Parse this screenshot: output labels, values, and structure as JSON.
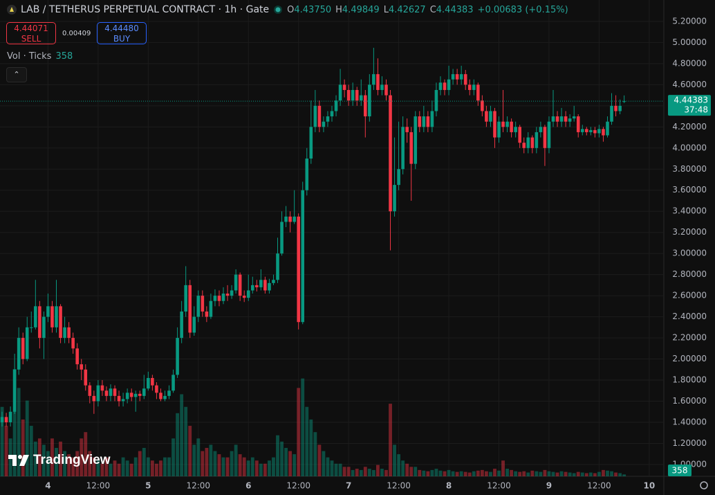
{
  "header": {
    "symbol": "LAB / TETHERUS PERPETUAL CONTRACT · 1h · Gate",
    "ohlc_letters": [
      "O",
      "H",
      "L",
      "C"
    ],
    "open_label": "4.43750",
    "change": "+0.00683 (+0.15%)",
    "sell_price": "4.44071",
    "sell": "SELL",
    "spread": "0.00409",
    "buy_price": "4.44480",
    "buy": "BUY",
    "volume_legend": "Vol · Ticks",
    "countdown": "37:48",
    "brand": "TradingView"
  },
  "chart_data": {
    "type": "candlestick",
    "open": [
      1.4,
      1.45,
      1.4,
      1.5,
      1.9,
      2.2,
      2.0,
      2.3,
      2.3,
      2.5,
      2.2,
      2.4,
      2.5,
      2.3,
      2.5,
      2.2,
      2.3,
      2.2,
      2.1,
      1.95,
      1.9,
      1.75,
      1.65,
      1.6,
      1.75,
      1.7,
      1.65,
      1.72,
      1.65,
      1.6,
      1.62,
      1.68,
      1.64,
      1.67,
      1.65,
      1.72,
      1.82,
      1.75,
      1.68,
      1.62,
      1.65,
      1.7,
      1.85,
      2.2,
      2.45,
      2.7,
      2.25,
      2.4,
      2.6,
      2.45,
      2.4,
      2.55,
      2.6,
      2.55,
      2.62,
      2.6,
      2.65,
      2.8,
      2.6,
      2.58,
      2.65,
      2.7,
      2.68,
      2.75,
      2.65,
      2.72,
      2.75,
      3.0,
      3.3,
      3.35,
      3.3,
      3.35,
      2.35,
      3.6,
      3.9,
      4.2,
      4.4,
      4.2,
      4.25,
      4.3,
      4.35,
      4.45,
      4.6,
      4.55,
      4.45,
      4.55,
      4.45,
      4.5,
      4.3,
      4.6,
      4.7,
      4.55,
      4.6,
      4.5,
      3.4,
      3.65,
      3.8,
      4.2,
      4.15,
      3.85,
      4.3,
      4.2,
      4.3,
      4.2,
      4.35,
      4.55,
      4.62,
      4.55,
      4.65,
      4.7,
      4.65,
      4.7,
      4.6,
      4.55,
      4.6,
      4.45,
      4.35,
      4.25,
      4.35,
      4.1,
      4.25,
      4.2,
      4.25,
      4.15,
      4.2,
      4.05,
      4.0,
      4.1,
      4.0,
      4.15,
      4.2,
      4.0,
      4.25,
      4.3,
      4.25,
      4.3,
      4.25,
      4.28,
      4.3,
      4.15,
      4.18,
      4.15,
      4.17,
      4.14,
      4.18,
      4.12,
      4.25,
      4.4,
      4.35,
      4.4375
    ],
    "high": [
      1.5,
      1.49,
      1.55,
      2.05,
      2.3,
      2.25,
      2.4,
      2.45,
      2.75,
      2.55,
      2.45,
      2.62,
      2.55,
      2.75,
      2.52,
      2.4,
      2.35,
      2.25,
      2.15,
      2.0,
      1.95,
      1.78,
      1.7,
      1.8,
      1.8,
      1.74,
      1.76,
      1.75,
      1.7,
      1.68,
      1.72,
      1.72,
      1.7,
      1.7,
      1.85,
      1.88,
      1.85,
      1.78,
      1.72,
      1.7,
      1.75,
      1.9,
      2.3,
      2.55,
      2.88,
      2.75,
      2.5,
      2.65,
      2.65,
      2.5,
      2.62,
      2.66,
      2.65,
      2.68,
      2.7,
      2.7,
      2.85,
      2.82,
      2.65,
      2.8,
      2.78,
      2.75,
      2.85,
      2.78,
      2.76,
      2.8,
      3.15,
      3.4,
      3.45,
      3.4,
      3.6,
      3.38,
      3.68,
      4.0,
      4.45,
      4.55,
      4.45,
      4.3,
      4.35,
      4.4,
      4.5,
      4.75,
      4.65,
      4.6,
      4.62,
      4.58,
      4.65,
      4.55,
      4.7,
      4.95,
      4.85,
      4.68,
      4.65,
      4.55,
      4.1,
      4.25,
      4.3,
      4.28,
      4.2,
      4.35,
      4.35,
      4.4,
      4.35,
      4.45,
      4.62,
      4.68,
      4.65,
      4.78,
      4.75,
      4.75,
      4.78,
      4.74,
      4.65,
      4.65,
      4.62,
      4.5,
      4.4,
      4.4,
      4.38,
      4.3,
      4.55,
      4.3,
      4.28,
      4.25,
      4.22,
      4.1,
      4.15,
      4.12,
      4.2,
      4.25,
      4.22,
      4.3,
      4.55,
      4.35,
      4.38,
      4.35,
      4.32,
      4.4,
      4.32,
      4.22,
      4.2,
      4.2,
      4.2,
      4.22,
      4.2,
      4.3,
      4.52,
      4.5,
      4.46,
      4.49849
    ],
    "low": [
      1.36,
      1.36,
      1.36,
      1.48,
      1.85,
      1.95,
      1.98,
      2.25,
      2.28,
      2.1,
      2.0,
      2.35,
      2.25,
      2.25,
      2.15,
      2.15,
      2.15,
      2.05,
      1.9,
      1.8,
      1.7,
      1.58,
      1.48,
      1.55,
      1.65,
      1.6,
      1.6,
      1.6,
      1.55,
      1.55,
      1.58,
      1.6,
      1.5,
      1.6,
      1.62,
      1.7,
      1.7,
      1.62,
      1.6,
      1.6,
      1.62,
      1.68,
      1.82,
      2.15,
      2.4,
      2.2,
      2.22,
      2.35,
      2.4,
      2.35,
      2.38,
      2.5,
      2.5,
      2.52,
      2.55,
      2.57,
      2.62,
      2.55,
      2.54,
      2.55,
      2.62,
      2.64,
      2.65,
      2.62,
      2.62,
      2.7,
      2.72,
      2.98,
      3.25,
      3.2,
      3.28,
      2.28,
      2.33,
      3.55,
      3.85,
      4.15,
      4.15,
      4.15,
      4.2,
      4.25,
      4.3,
      4.4,
      4.48,
      4.4,
      4.4,
      4.4,
      4.4,
      4.1,
      4.25,
      4.55,
      4.5,
      4.5,
      4.45,
      3.03,
      3.35,
      3.6,
      3.75,
      4.05,
      3.5,
      3.8,
      4.15,
      4.15,
      4.15,
      4.15,
      4.3,
      4.5,
      4.5,
      4.5,
      4.6,
      4.6,
      4.6,
      4.55,
      4.5,
      4.5,
      4.4,
      4.3,
      4.2,
      4.2,
      4.0,
      4.05,
      4.15,
      4.15,
      4.1,
      4.1,
      4.0,
      3.95,
      3.95,
      3.95,
      3.95,
      4.1,
      3.83,
      3.95,
      4.2,
      4.2,
      4.2,
      4.2,
      4.2,
      4.25,
      4.1,
      4.12,
      4.12,
      4.12,
      4.1,
      4.1,
      4.06,
      4.1,
      4.22,
      4.3,
      4.32,
      4.42627
    ],
    "close": [
      1.45,
      1.4,
      1.5,
      1.9,
      2.2,
      2.0,
      2.3,
      2.3,
      2.5,
      2.2,
      2.4,
      2.5,
      2.3,
      2.5,
      2.2,
      2.3,
      2.2,
      2.1,
      1.95,
      1.9,
      1.75,
      1.65,
      1.6,
      1.75,
      1.7,
      1.65,
      1.72,
      1.65,
      1.6,
      1.62,
      1.68,
      1.64,
      1.67,
      1.65,
      1.72,
      1.82,
      1.75,
      1.68,
      1.62,
      1.65,
      1.7,
      1.85,
      2.2,
      2.45,
      2.7,
      2.25,
      2.4,
      2.6,
      2.45,
      2.4,
      2.55,
      2.6,
      2.55,
      2.62,
      2.6,
      2.65,
      2.8,
      2.6,
      2.58,
      2.65,
      2.7,
      2.68,
      2.75,
      2.65,
      2.72,
      2.75,
      3.0,
      3.3,
      3.35,
      3.3,
      3.35,
      2.35,
      3.6,
      3.9,
      4.2,
      4.4,
      4.2,
      4.25,
      4.3,
      4.35,
      4.45,
      4.6,
      4.55,
      4.45,
      4.55,
      4.45,
      4.5,
      4.3,
      4.6,
      4.7,
      4.55,
      4.6,
      4.5,
      3.4,
      3.65,
      3.8,
      4.2,
      4.15,
      3.85,
      4.3,
      4.2,
      4.3,
      4.2,
      4.35,
      4.55,
      4.62,
      4.55,
      4.65,
      4.7,
      4.65,
      4.7,
      4.6,
      4.55,
      4.6,
      4.45,
      4.35,
      4.25,
      4.35,
      4.1,
      4.25,
      4.2,
      4.25,
      4.15,
      4.2,
      4.05,
      4.0,
      4.1,
      4.0,
      4.15,
      4.2,
      4.0,
      4.25,
      4.3,
      4.25,
      4.3,
      4.25,
      4.28,
      4.3,
      4.15,
      4.18,
      4.15,
      4.17,
      4.14,
      4.18,
      4.12,
      4.25,
      4.4,
      4.35,
      4.4,
      4.44383
    ],
    "volume": [
      13200,
      9600,
      7200,
      20400,
      16800,
      10800,
      14400,
      9600,
      6600,
      7200,
      6000,
      4800,
      7200,
      5400,
      6600,
      4800,
      4200,
      3600,
      4800,
      7200,
      8400,
      4800,
      3600,
      3000,
      2400,
      3600,
      2400,
      3000,
      2400,
      3600,
      3000,
      2400,
      3600,
      4800,
      5400,
      3600,
      3000,
      2400,
      3000,
      3600,
      3600,
      7200,
      12000,
      15600,
      13200,
      9600,
      6000,
      7200,
      4800,
      5400,
      6000,
      4800,
      4200,
      3600,
      3600,
      4800,
      6000,
      4200,
      3600,
      3000,
      3600,
      3000,
      2400,
      2400,
      3000,
      3600,
      7800,
      6600,
      5400,
      4800,
      4200,
      16800,
      18600,
      13200,
      10800,
      8400,
      6000,
      4800,
      3600,
      3000,
      2400,
      2400,
      1800,
      1800,
      1200,
      1440,
      1200,
      1800,
      1440,
      1200,
      2160,
      1440,
      1200,
      13800,
      6000,
      4200,
      3000,
      2400,
      1800,
      1800,
      1200,
      1080,
      960,
      1200,
      1440,
      1080,
      960,
      1200,
      960,
      840,
      960,
      840,
      720,
      960,
      1080,
      1200,
      960,
      840,
      1440,
      1080,
      3000,
      1440,
      1200,
      960,
      840,
      960,
      720,
      1080,
      960,
      840,
      1200,
      960,
      840,
      720,
      960,
      840,
      720,
      600,
      840,
      720,
      600,
      720,
      600,
      840,
      1200,
      1080,
      960,
      720,
      600,
      358
    ],
    "up_color": "#089981",
    "down_color": "#f23645",
    "ylim": [
      0.888,
      5.403
    ],
    "yticks": [
      {
        "value": 1.0,
        "label": "1.00000"
      },
      {
        "value": 1.2,
        "label": "1.20000"
      },
      {
        "value": 1.4,
        "label": "1.40000"
      },
      {
        "value": 1.6,
        "label": "1.60000"
      },
      {
        "value": 1.8,
        "label": "1.80000"
      },
      {
        "value": 2.0,
        "label": "2.00000"
      },
      {
        "value": 2.2,
        "label": "2.20000"
      },
      {
        "value": 2.4,
        "label": "2.40000"
      },
      {
        "value": 2.6,
        "label": "2.60000"
      },
      {
        "value": 2.8,
        "label": "2.80000"
      },
      {
        "value": 3.0,
        "label": "3.00000"
      },
      {
        "value": 3.2,
        "label": "3.20000"
      },
      {
        "value": 3.4,
        "label": "3.40000"
      },
      {
        "value": 3.6,
        "label": "3.60000"
      },
      {
        "value": 3.8,
        "label": "3.80000"
      },
      {
        "value": 4.0,
        "label": "4.00000"
      },
      {
        "value": 4.2,
        "label": "4.20000"
      },
      {
        "value": 4.4,
        "label": "4.40000"
      },
      {
        "value": 4.6,
        "label": "4.60000"
      },
      {
        "value": 4.8,
        "label": "4.80000"
      },
      {
        "value": 5.0,
        "label": "5.00000"
      },
      {
        "value": 5.2,
        "label": "5.20000"
      }
    ],
    "xlim": [
      -0.5,
      158.5
    ],
    "xticks": [
      {
        "value": 11,
        "label": "4"
      },
      {
        "value": 23,
        "label": "12:00"
      },
      {
        "value": 35,
        "label": "5"
      },
      {
        "value": 47,
        "label": "12:00"
      },
      {
        "value": 59,
        "label": "6"
      },
      {
        "value": 71,
        "label": "12:00"
      },
      {
        "value": 83,
        "label": "7"
      },
      {
        "value": 95,
        "label": "12:00"
      },
      {
        "value": 107,
        "label": "8"
      },
      {
        "value": 119,
        "label": "12:00"
      },
      {
        "value": 131,
        "label": "9"
      },
      {
        "value": 143,
        "label": "12:00"
      },
      {
        "value": 155,
        "label": "10"
      }
    ],
    "grid": true
  }
}
